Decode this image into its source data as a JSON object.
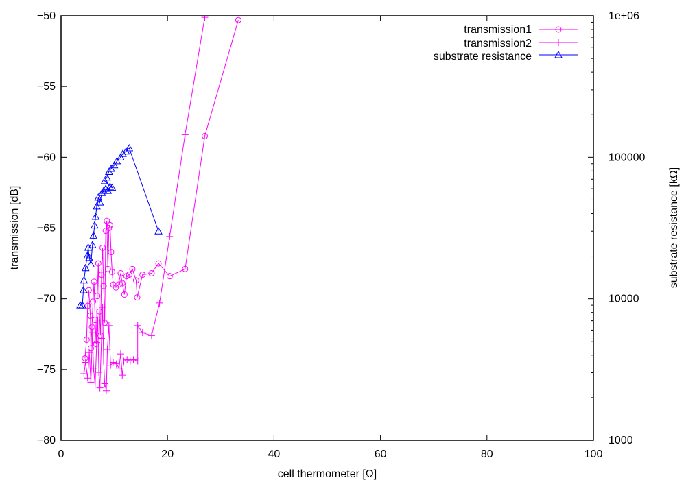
{
  "chart_data": {
    "type": "scatter",
    "title": "",
    "xlabel": "cell thermometer [Ω]",
    "ylabel": "transmission [dB]",
    "y2label": "substrate resistance [kΩ]",
    "xlim": [
      0,
      100
    ],
    "ylim": [
      -80,
      -50
    ],
    "y2lim": [
      1000,
      1000000
    ],
    "y2scale": "log",
    "grid": false,
    "legend_position": "top-right",
    "x_ticks": [
      "0",
      "20",
      "40",
      "60",
      "80",
      "100"
    ],
    "y_ticks": [
      "-80",
      "-75",
      "-70",
      "-65",
      "-60",
      "-55",
      "-50"
    ],
    "y2_ticks": [
      "1000",
      "10000",
      "100000",
      "1e+06"
    ],
    "series": [
      {
        "name": "transmission1",
        "axis": "y",
        "color": "#ff00ff",
        "marker": "circle",
        "line": true,
        "points": [
          [
            4.5,
            -74.2
          ],
          [
            4.8,
            -72.9
          ],
          [
            5.0,
            -70.5
          ],
          [
            5.2,
            -69.4
          ],
          [
            5.5,
            -71.2
          ],
          [
            5.6,
            -73.5
          ],
          [
            5.8,
            -72.0
          ],
          [
            6.0,
            -70.2
          ],
          [
            6.2,
            -68.8
          ],
          [
            6.4,
            -71.5
          ],
          [
            6.6,
            -73.2
          ],
          [
            6.8,
            -69.8
          ],
          [
            7.0,
            -67.5
          ],
          [
            7.2,
            -70.9
          ],
          [
            7.4,
            -72.6
          ],
          [
            7.6,
            -68.3
          ],
          [
            7.8,
            -66.4
          ],
          [
            8.0,
            -69.1
          ],
          [
            8.2,
            -71.7
          ],
          [
            8.4,
            -65.2
          ],
          [
            8.6,
            -64.5
          ],
          [
            8.8,
            -67.9
          ],
          [
            9.0,
            -65.0
          ],
          [
            9.2,
            -64.8
          ],
          [
            9.4,
            -66.7
          ],
          [
            9.6,
            -68.1
          ],
          [
            9.8,
            -69.0
          ],
          [
            10.3,
            -69.2
          ],
          [
            10.8,
            -69.0
          ],
          [
            11.2,
            -68.2
          ],
          [
            11.5,
            -68.9
          ],
          [
            11.9,
            -69.7
          ],
          [
            12.3,
            -68.4
          ],
          [
            12.8,
            -68.3
          ],
          [
            13.4,
            -67.9
          ],
          [
            14.1,
            -68.7
          ],
          [
            14.3,
            -69.9
          ],
          [
            15.3,
            -68.3
          ],
          [
            17.0,
            -68.2
          ],
          [
            18.3,
            -67.5
          ],
          [
            20.4,
            -68.4
          ],
          [
            23.3,
            -67.9
          ],
          [
            27.0,
            -58.5
          ],
          [
            33.3,
            -50.3
          ]
        ]
      },
      {
        "name": "transmission2",
        "axis": "y",
        "color": "#ff00ff",
        "marker": "plus",
        "line": true,
        "points": [
          [
            4.3,
            -75.3
          ],
          [
            4.6,
            -74.5
          ],
          [
            5.0,
            -75.6
          ],
          [
            5.3,
            -73.8
          ],
          [
            5.6,
            -75.9
          ],
          [
            5.9,
            -72.4
          ],
          [
            6.1,
            -74.9
          ],
          [
            6.4,
            -76.1
          ],
          [
            6.7,
            -73.1
          ],
          [
            6.9,
            -71.5
          ],
          [
            7.1,
            -75.2
          ],
          [
            7.3,
            -76.3
          ],
          [
            7.6,
            -72.8
          ],
          [
            7.8,
            -70.6
          ],
          [
            8.0,
            -74.4
          ],
          [
            8.2,
            -76.0
          ],
          [
            8.5,
            -76.5
          ],
          [
            8.7,
            -73.6
          ],
          [
            9.0,
            -71.9
          ],
          [
            9.3,
            -74.7
          ],
          [
            9.8,
            -74.5
          ],
          [
            10.4,
            -74.6
          ],
          [
            10.9,
            -74.9
          ],
          [
            11.2,
            -73.9
          ],
          [
            11.5,
            -75.4
          ],
          [
            11.8,
            -74.4
          ],
          [
            12.4,
            -74.3
          ],
          [
            13.0,
            -74.4
          ],
          [
            13.6,
            -74.3
          ],
          [
            14.4,
            -74.4
          ],
          [
            14.4,
            -71.9
          ],
          [
            15.3,
            -72.4
          ],
          [
            17.0,
            -72.6
          ],
          [
            18.5,
            -70.3
          ],
          [
            20.4,
            -65.6
          ],
          [
            23.3,
            -58.4
          ],
          [
            27.0,
            -50.1
          ]
        ]
      },
      {
        "name": "substrate resistance",
        "axis": "y2",
        "color": "#0000ff",
        "marker": "triangle",
        "line": true,
        "points": [
          [
            3.6,
            9000
          ],
          [
            4.0,
            9000
          ],
          [
            4.2,
            11500
          ],
          [
            4.3,
            13500
          ],
          [
            4.6,
            16500
          ],
          [
            4.9,
            20000
          ],
          [
            5.1,
            23000
          ],
          [
            5.3,
            19500
          ],
          [
            5.6,
            17500
          ],
          [
            5.9,
            24000
          ],
          [
            6.1,
            28000
          ],
          [
            6.3,
            33000
          ],
          [
            6.5,
            38000
          ],
          [
            6.7,
            45000
          ],
          [
            7.0,
            52000
          ],
          [
            7.3,
            48000
          ],
          [
            7.7,
            56000
          ],
          [
            8.0,
            58000
          ],
          [
            8.4,
            60000
          ],
          [
            8.8,
            58000
          ],
          [
            9.2,
            62000
          ],
          [
            9.6,
            61000
          ],
          [
            8.2,
            68000
          ],
          [
            8.6,
            72000
          ],
          [
            9.0,
            79000
          ],
          [
            9.4,
            83000
          ],
          [
            10.0,
            88000
          ],
          [
            10.5,
            94000
          ],
          [
            11.2,
            100000
          ],
          [
            11.6,
            106000
          ],
          [
            12.2,
            110000
          ],
          [
            12.8,
            116000
          ],
          [
            18.3,
            30000
          ]
        ]
      }
    ]
  }
}
